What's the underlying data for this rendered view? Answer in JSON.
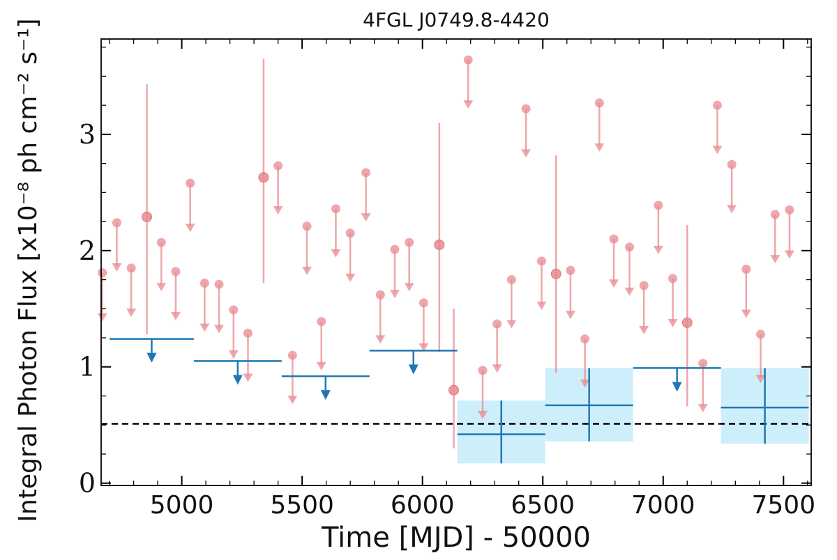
{
  "chart_data": {
    "type": "scatter",
    "title": "4FGL J0749.8-4420",
    "xlabel": "Time [MJD] - 50000",
    "ylabel": "Integral Photon Flux [x10⁻⁸ ph cm⁻² s⁻¹]",
    "xlim": [
      4665,
      7615
    ],
    "ylim": [
      -0.02,
      3.82
    ],
    "xticks": [
      5000,
      5500,
      6000,
      6500,
      7000,
      7500
    ],
    "xtick_labels": [
      "5000",
      "5500",
      "6000",
      "6500",
      "7000",
      "7500"
    ],
    "yticks": [
      0,
      1,
      2,
      3
    ],
    "ytick_labels": [
      "0",
      "1",
      "2",
      "3"
    ],
    "reference_line": {
      "y": 0.51,
      "style": "dashed",
      "color": "#000000"
    },
    "colors": {
      "fine_bins": "#e88a8f",
      "coarse_bins": "#1f77b4",
      "coarse_band": "#cdeefb"
    },
    "series": [
      {
        "bin_width_days": 60,
        "upper_limits": [
          {
            "x": 4670,
            "y": 1.81
          },
          {
            "x": 4730,
            "y": 2.24
          },
          {
            "x": 4790,
            "y": 1.85
          },
          {
            "x": 4915,
            "y": 2.07
          },
          {
            "x": 4975,
            "y": 1.82
          },
          {
            "x": 5035,
            "y": 2.58
          },
          {
            "x": 5095,
            "y": 1.72
          },
          {
            "x": 5155,
            "y": 1.71
          },
          {
            "x": 5215,
            "y": 1.49
          },
          {
            "x": 5275,
            "y": 1.29
          },
          {
            "x": 5400,
            "y": 2.73
          },
          {
            "x": 5460,
            "y": 1.1
          },
          {
            "x": 5520,
            "y": 2.21
          },
          {
            "x": 5580,
            "y": 1.39
          },
          {
            "x": 5640,
            "y": 2.36
          },
          {
            "x": 5700,
            "y": 2.15
          },
          {
            "x": 5765,
            "y": 2.67
          },
          {
            "x": 5825,
            "y": 1.62
          },
          {
            "x": 5885,
            "y": 2.01
          },
          {
            "x": 5945,
            "y": 2.07
          },
          {
            "x": 6005,
            "y": 1.55
          },
          {
            "x": 6190,
            "y": 3.64
          },
          {
            "x": 6250,
            "y": 0.97
          },
          {
            "x": 6310,
            "y": 1.37
          },
          {
            "x": 6370,
            "y": 1.75
          },
          {
            "x": 6430,
            "y": 3.22
          },
          {
            "x": 6495,
            "y": 1.91
          },
          {
            "x": 6615,
            "y": 1.83
          },
          {
            "x": 6675,
            "y": 1.24
          },
          {
            "x": 6735,
            "y": 3.27
          },
          {
            "x": 6795,
            "y": 2.1
          },
          {
            "x": 6860,
            "y": 2.03
          },
          {
            "x": 6920,
            "y": 1.7
          },
          {
            "x": 6980,
            "y": 2.39
          },
          {
            "x": 7040,
            "y": 1.76
          },
          {
            "x": 7165,
            "y": 1.03
          },
          {
            "x": 7225,
            "y": 3.25
          },
          {
            "x": 7285,
            "y": 2.74
          },
          {
            "x": 7345,
            "y": 1.84
          },
          {
            "x": 7405,
            "y": 1.28
          },
          {
            "x": 7465,
            "y": 2.31
          },
          {
            "x": 7525,
            "y": 2.35
          }
        ],
        "detections": [
          {
            "x": 4855,
            "y": 2.29,
            "ylo": 1.28,
            "yhi": 3.43
          },
          {
            "x": 5340,
            "y": 2.63,
            "ylo": 1.72,
            "yhi": 3.65
          },
          {
            "x": 6070,
            "y": 2.05,
            "ylo": 1.13,
            "yhi": 3.1
          },
          {
            "x": 6130,
            "y": 0.8,
            "ylo": 0.3,
            "yhi": 1.5
          },
          {
            "x": 6555,
            "y": 1.8,
            "ylo": 0.95,
            "yhi": 2.82
          },
          {
            "x": 7100,
            "y": 1.38,
            "ylo": 0.66,
            "yhi": 2.22
          }
        ]
      },
      {
        "bin_width_days": 365,
        "upper_limits": [
          {
            "x0": 4700,
            "x1": 5050,
            "y": 1.24
          },
          {
            "x0": 5050,
            "x1": 5415,
            "y": 1.05
          },
          {
            "x0": 5415,
            "x1": 5780,
            "y": 0.92
          },
          {
            "x0": 5780,
            "x1": 6145,
            "y": 1.14
          },
          {
            "x0": 6875,
            "x1": 7240,
            "y": 0.99
          }
        ],
        "detections": [
          {
            "x0": 6145,
            "x1": 6510,
            "y": 0.42,
            "ylo": 0.17,
            "yhi": 0.71
          },
          {
            "x0": 6510,
            "x1": 6875,
            "y": 0.67,
            "ylo": 0.36,
            "yhi": 0.99
          },
          {
            "x0": 7240,
            "x1": 7605,
            "y": 0.65,
            "ylo": 0.34,
            "yhi": 0.99
          }
        ]
      }
    ]
  }
}
